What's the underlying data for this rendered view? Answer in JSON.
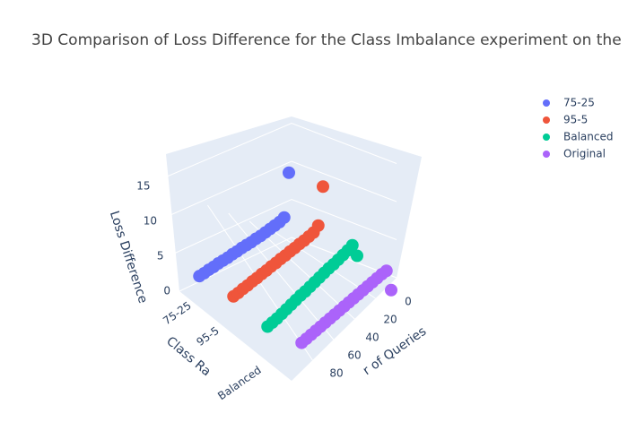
{
  "chart_data": {
    "type": "scatter3d",
    "title": "3D Comparison of Loss Difference for the Class Imbalance experiment on the",
    "x_label": "r of Queries",
    "y_label": "Class Ra",
    "z_label": "Loss Difference",
    "x": [
      0,
      5,
      10,
      15,
      20,
      25,
      30,
      35,
      40,
      45,
      50,
      55,
      60,
      65,
      70,
      75,
      80,
      85,
      90,
      95
    ],
    "categories": [
      "75-25",
      "95-5",
      "Balanced",
      null
    ],
    "series": [
      {
        "name": "75-25",
        "color": "#636efa",
        "values": [
          16.5,
          9,
          8.4,
          8,
          7.6,
          7.2,
          6.8,
          6.5,
          6.1,
          5.8,
          5.5,
          5.1,
          4.8,
          4.4,
          4.1,
          3.8,
          3.4,
          3.1,
          2.7,
          2.4
        ]
      },
      {
        "name": "95-5",
        "color": "#EF553B",
        "values": [
          17.5,
          11,
          10,
          9.5,
          9,
          8.6,
          8.1,
          7.7,
          7.2,
          6.8,
          6.3,
          5.9,
          5.4,
          5,
          4.5,
          4.1,
          3.6,
          3.2,
          2.7,
          2.3
        ]
      },
      {
        "name": "Balanced",
        "color": "#00cc96",
        "values": [
          9,
          11,
          10.3,
          9.7,
          9.1,
          8.5,
          8,
          7.4,
          6.8,
          6.2,
          5.6,
          5,
          4.5,
          3.9,
          3.3,
          2.7,
          2.1,
          1.5,
          1,
          0.5
        ]
      },
      {
        "name": "Original",
        "color": "#ab63fa",
        "values": [
          6.5,
          10,
          9.6,
          9.1,
          8.6,
          8.1,
          7.6,
          7.1,
          6.6,
          6.1,
          5.6,
          5.1,
          4.6,
          4.1,
          3.6,
          3.1,
          2.6,
          2.1,
          1.6,
          1.1
        ]
      }
    ],
    "xticks": [
      0,
      20,
      40,
      60,
      80
    ],
    "zticks": [
      0,
      5,
      10,
      15
    ],
    "grid": true,
    "legend": "top-right"
  }
}
